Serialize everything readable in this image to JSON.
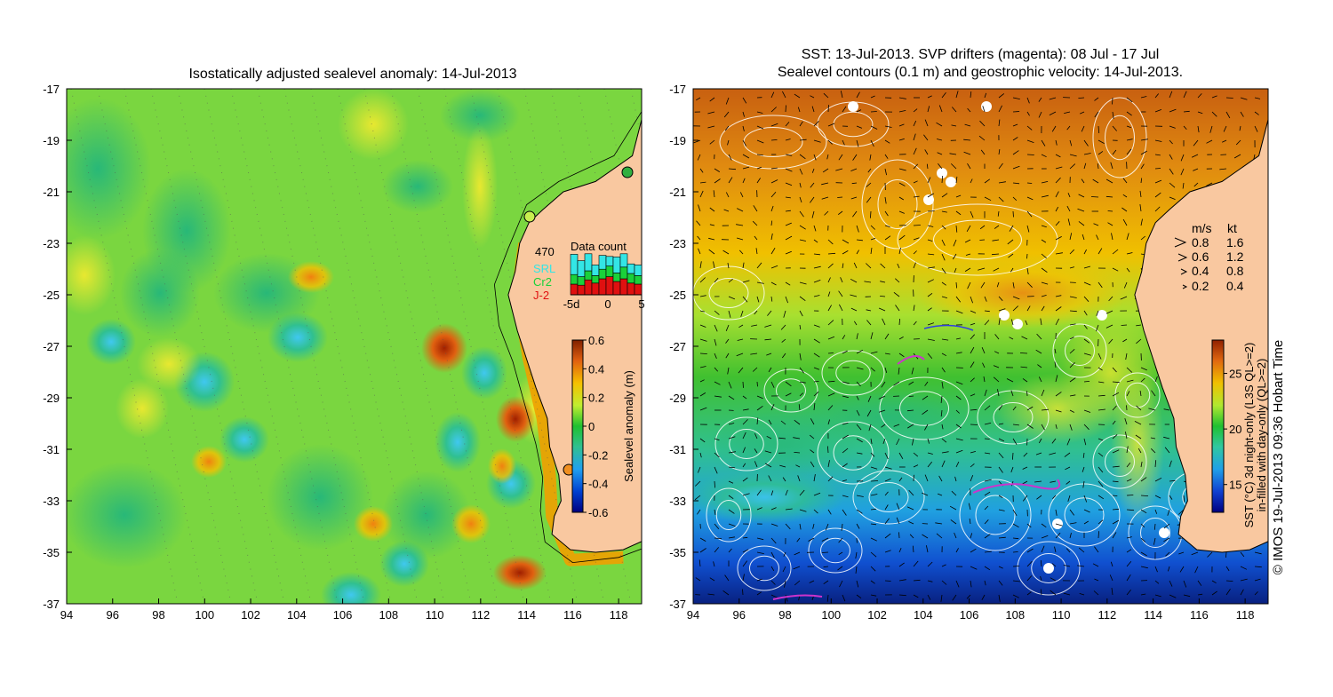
{
  "left_panel": {
    "title": "Isostatically adjusted sealevel anomaly: 14-Jul-2013",
    "colorbar": {
      "label": "Sealevel anomaly (m)",
      "ticks": [
        "0.6",
        "0.4",
        "0.2",
        "0",
        "-0.2",
        "-0.4",
        "-0.6"
      ],
      "range": [
        -0.6,
        0.6
      ]
    },
    "data_count": {
      "title": "Data count",
      "max_label": "470",
      "legend": [
        {
          "name": "SRL",
          "color": "#33e5e5"
        },
        {
          "name": "Cr2",
          "color": "#1ad13a"
        },
        {
          "name": "J-2",
          "color": "#e01010"
        }
      ],
      "x_ticks": [
        "-5d",
        "0",
        "5"
      ],
      "days": [
        {
          "srl": 0.38,
          "cr2": 0.18,
          "j2": 0.2
        },
        {
          "srl": 0.3,
          "cr2": 0.16,
          "j2": 0.18
        },
        {
          "srl": 0.32,
          "cr2": 0.17,
          "j2": 0.28
        },
        {
          "srl": 0.2,
          "cr2": 0.14,
          "j2": 0.22
        },
        {
          "srl": 0.26,
          "cr2": 0.18,
          "j2": 0.3
        },
        {
          "srl": 0.18,
          "cr2": 0.2,
          "j2": 0.34
        },
        {
          "srl": 0.3,
          "cr2": 0.16,
          "j2": 0.25
        },
        {
          "srl": 0.25,
          "cr2": 0.22,
          "j2": 0.3
        },
        {
          "srl": 0.18,
          "cr2": 0.18,
          "j2": 0.22
        },
        {
          "srl": 0.2,
          "cr2": 0.16,
          "j2": 0.2
        }
      ]
    }
  },
  "right_panel": {
    "title_line1": "SST: 13-Jul-2013. SVP drifters (magenta): 08 Jul - 17 Jul",
    "title_line2": "Sealevel contours (0.1 m) and geostrophic velocity: 14-Jul-2013.",
    "velocity_legend": {
      "header_ms": "m/s",
      "header_kt": "kt",
      "rows": [
        {
          "ms": "0.8",
          "kt": "1.6"
        },
        {
          "ms": "0.6",
          "kt": "1.2"
        },
        {
          "ms": "0.4",
          "kt": "0.8"
        },
        {
          "ms": "0.2",
          "kt": "0.4"
        }
      ]
    },
    "colorbar": {
      "label_line1": "SST (°C) 3d night-only (L3S QL>=2)",
      "label_line2": "in-filled with day-only (QL>=2)",
      "ticks": [
        "25",
        "20",
        "15"
      ],
      "range": [
        12.5,
        28
      ]
    }
  },
  "axes": {
    "lon_ticks": [
      "94",
      "96",
      "98",
      "100",
      "102",
      "104",
      "106",
      "108",
      "110",
      "112",
      "114",
      "116",
      "118"
    ],
    "lat_ticks": [
      "-17",
      "-19",
      "-21",
      "-23",
      "-25",
      "-27",
      "-29",
      "-31",
      "-33",
      "-35",
      "-37"
    ]
  },
  "credit": "© IMOS 19-Jul-2013 09:36 Hobart Time",
  "colors": {
    "land": "#f9c8a0",
    "contour": "#ffffff",
    "drifter": "#cc33cc"
  }
}
